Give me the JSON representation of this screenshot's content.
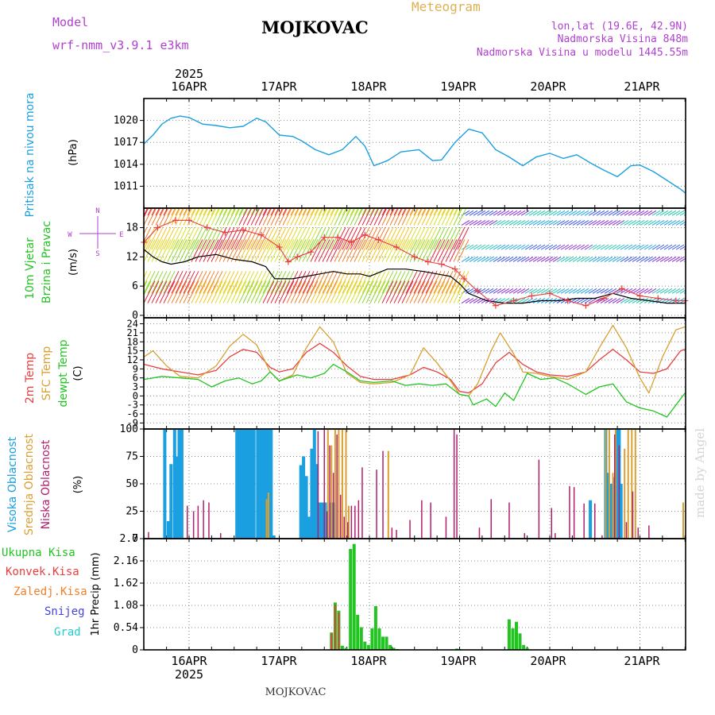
{
  "header": {
    "model_label": "Model",
    "model_name": "wrf-nmm_v3.9.1  e3km",
    "station": "MOJKOVAC",
    "meteogram": "Meteogram",
    "lonlat": "lon,lat (19.6E, 42.9N)",
    "elevation": "Nadmorska Visina 848m",
    "model_elevation": "Nadmorska Visina u modelu 1445.55m",
    "footer_station": "MOJKOVAC",
    "credit": "made by Angel",
    "year_top": "2025",
    "year_bottom": "2025"
  },
  "colors": {
    "pressure": "#1aa0e0",
    "wind": "#000000",
    "temp2m": "#e83e3e",
    "sfc": "#d9a030",
    "dew": "#22c422",
    "high": "#1aa0e0",
    "mid": "#d9a030",
    "low": "#b0206e",
    "total": "#22c422",
    "conv": "#e83e3e",
    "frozen": "#f07f28",
    "snow": "#4444dd",
    "hail": "#22cccc",
    "purple": "#b040d0",
    "orange_title": "#e0b050"
  },
  "chart_data": [
    {
      "type": "line",
      "id": "pressure",
      "title": "Pritisak na nivou mora",
      "ylabel": "(hPa)",
      "ylim": [
        1008,
        1023
      ],
      "yticks": [
        1011,
        1014,
        1017,
        1020
      ],
      "ytick_labels": [
        "1011",
        "1014",
        "1017",
        "1020"
      ],
      "xlim": [
        -0.5,
        5.5
      ],
      "x": [
        -0.5,
        -0.4,
        -0.3,
        -0.2,
        -0.1,
        0.0,
        0.15,
        0.3,
        0.45,
        0.6,
        0.75,
        0.85,
        1.0,
        1.15,
        1.25,
        1.4,
        1.55,
        1.7,
        1.85,
        1.95,
        2.05,
        2.2,
        2.35,
        2.55,
        2.7,
        2.8,
        2.95,
        3.1,
        3.25,
        3.4,
        3.55,
        3.7,
        3.85,
        4.0,
        4.15,
        4.3,
        4.45,
        4.6,
        4.75,
        4.9,
        5.0,
        5.15,
        5.3,
        5.45,
        5.5
      ],
      "y": [
        1016.8,
        1018.0,
        1019.5,
        1020.3,
        1020.6,
        1020.4,
        1019.5,
        1019.3,
        1019.0,
        1019.2,
        1020.3,
        1019.8,
        1018.0,
        1017.8,
        1017.2,
        1016.0,
        1015.3,
        1016.0,
        1017.8,
        1016.5,
        1013.8,
        1014.5,
        1015.7,
        1016.0,
        1014.5,
        1014.6,
        1017.0,
        1018.8,
        1018.3,
        1016.0,
        1015.0,
        1013.8,
        1015.0,
        1015.5,
        1014.8,
        1015.3,
        1014.2,
        1013.2,
        1012.3,
        1013.8,
        1013.9,
        1013.0,
        1011.8,
        1010.6,
        1010.1
      ],
      "color": "#1aa0e0"
    },
    {
      "type": "line",
      "id": "wind",
      "title": [
        "10m Vjetar",
        "Brzina i Pravac"
      ],
      "ylabel": "(m/s)",
      "ylim": [
        -0.5,
        22
      ],
      "yticks": [
        0,
        6,
        12,
        18
      ],
      "ytick_labels": [
        "0",
        "6",
        "12",
        "18"
      ],
      "compass": {
        "n": "N",
        "s": "S",
        "w": "W",
        "e": "E"
      },
      "xlim": [
        -0.5,
        5.5
      ],
      "series": [
        {
          "name": "wind speed",
          "color": "#000000",
          "x": [
            -0.5,
            -0.4,
            -0.3,
            -0.2,
            -0.05,
            0.1,
            0.3,
            0.5,
            0.7,
            0.85,
            0.95,
            1.05,
            1.15,
            1.3,
            1.45,
            1.6,
            1.75,
            1.9,
            2.0,
            2.2,
            2.4,
            2.6,
            2.75,
            2.9,
            3.0,
            3.1,
            3.3,
            3.5,
            3.7,
            3.9,
            4.1,
            4.3,
            4.5,
            4.7,
            4.9,
            5.1,
            5.3,
            5.5
          ],
          "y": [
            13.5,
            12.0,
            11.0,
            10.5,
            11.0,
            12.0,
            12.5,
            11.5,
            11.0,
            10.0,
            7.5,
            7.5,
            7.5,
            8.0,
            8.5,
            9.0,
            8.5,
            8.5,
            8.0,
            9.5,
            9.5,
            9.0,
            8.5,
            8.0,
            6.5,
            4.5,
            3.0,
            2.5,
            2.5,
            3.0,
            3.0,
            3.5,
            3.5,
            4.5,
            3.5,
            3.0,
            2.5,
            2.5
          ]
        },
        {
          "name": "wind gust",
          "color": "#e83e3e",
          "x": [
            -0.5,
            -0.35,
            -0.15,
            0.0,
            0.2,
            0.4,
            0.6,
            0.8,
            1.0,
            1.1,
            1.2,
            1.35,
            1.5,
            1.65,
            1.8,
            1.95,
            2.1,
            2.3,
            2.5,
            2.65,
            2.8,
            2.95,
            3.05,
            3.2,
            3.4,
            3.6,
            3.8,
            4.0,
            4.2,
            4.4,
            4.6,
            4.8,
            5.0,
            5.2,
            5.4,
            5.5
          ],
          "y": [
            15.0,
            18.0,
            19.5,
            19.5,
            18.0,
            17.0,
            17.5,
            16.5,
            14.0,
            11.0,
            12.0,
            13.0,
            16.0,
            16.0,
            15.0,
            16.5,
            15.5,
            14.0,
            12.0,
            11.0,
            10.5,
            9.5,
            7.5,
            5.0,
            2.0,
            3.0,
            4.0,
            4.5,
            3.0,
            2.0,
            3.5,
            5.5,
            4.0,
            3.5,
            3.0,
            3.0
          ]
        }
      ]
    },
    {
      "type": "line",
      "id": "temperature",
      "title": [
        "2m Temp",
        "SFC Temp",
        "dewpt Temp"
      ],
      "ylabel": "(C)",
      "ylim": [
        -11,
        26
      ],
      "yticks": [
        -9,
        -6,
        -3,
        0,
        3,
        6,
        9,
        12,
        15,
        18,
        21,
        24
      ],
      "ytick_labels": [
        "-9",
        "-6",
        "-3",
        "0",
        "3",
        "6",
        "9",
        "12",
        "15",
        "18",
        "21",
        "24"
      ],
      "xlim": [
        -0.5,
        5.5
      ],
      "series": [
        {
          "name": "2m Temp",
          "color": "#e83e3e",
          "x": [
            -0.5,
            -0.3,
            -0.1,
            0.1,
            0.3,
            0.45,
            0.6,
            0.75,
            0.9,
            1.0,
            1.15,
            1.3,
            1.45,
            1.6,
            1.75,
            1.9,
            2.05,
            2.25,
            2.45,
            2.6,
            2.75,
            2.9,
            3.0,
            3.1,
            3.25,
            3.4,
            3.55,
            3.7,
            3.85,
            4.0,
            4.2,
            4.4,
            4.55,
            4.7,
            4.85,
            5.0,
            5.15,
            5.3,
            5.45,
            5.5
          ],
          "y": [
            10.5,
            9.0,
            8.0,
            7.0,
            8.5,
            13.0,
            15.5,
            14.5,
            9.5,
            8.0,
            9.0,
            14.5,
            17.5,
            14.5,
            10.0,
            6.5,
            5.5,
            5.5,
            7.0,
            9.5,
            8.0,
            5.5,
            1.5,
            1.0,
            4.0,
            11.0,
            14.5,
            10.5,
            8.0,
            7.0,
            6.5,
            8.0,
            12.0,
            15.5,
            12.0,
            8.0,
            7.5,
            9.0,
            15.0,
            15.5
          ]
        },
        {
          "name": "SFC Temp",
          "color": "#d9a030",
          "x": [
            -0.5,
            -0.4,
            -0.25,
            -0.1,
            0.1,
            0.3,
            0.45,
            0.6,
            0.75,
            0.9,
            1.0,
            1.15,
            1.3,
            1.45,
            1.6,
            1.75,
            1.9,
            2.05,
            2.25,
            2.45,
            2.6,
            2.75,
            2.9,
            3.0,
            3.1,
            3.2,
            3.35,
            3.45,
            3.6,
            3.7,
            3.85,
            4.0,
            4.2,
            4.4,
            4.55,
            4.7,
            4.85,
            5.0,
            5.1,
            5.25,
            5.4,
            5.5
          ],
          "y": [
            13.0,
            15.0,
            10.0,
            6.5,
            6.0,
            10.0,
            16.5,
            20.5,
            17.0,
            8.0,
            5.0,
            7.0,
            16.0,
            23.0,
            18.0,
            7.5,
            4.5,
            4.0,
            4.5,
            7.0,
            16.0,
            11.0,
            5.0,
            0.5,
            0.0,
            4.0,
            15.0,
            21.0,
            14.0,
            8.0,
            7.5,
            6.5,
            5.5,
            8.0,
            16.0,
            23.5,
            16.0,
            6.0,
            1.0,
            13.0,
            22.0,
            23.0
          ]
        },
        {
          "name": "dewpt Temp",
          "color": "#22c422",
          "x": [
            -0.5,
            -0.3,
            -0.1,
            0.1,
            0.25,
            0.4,
            0.55,
            0.7,
            0.8,
            0.9,
            1.0,
            1.2,
            1.35,
            1.5,
            1.6,
            1.75,
            1.9,
            2.05,
            2.25,
            2.4,
            2.55,
            2.7,
            2.85,
            3.0,
            3.1,
            3.15,
            3.3,
            3.4,
            3.5,
            3.6,
            3.75,
            3.9,
            4.05,
            4.2,
            4.4,
            4.55,
            4.7,
            4.85,
            5.0,
            5.15,
            5.3,
            5.45,
            5.5
          ],
          "y": [
            5.5,
            6.5,
            6.0,
            5.5,
            3.0,
            5.0,
            6.0,
            4.0,
            5.0,
            8.0,
            5.0,
            7.0,
            6.0,
            7.5,
            10.5,
            8.0,
            5.0,
            4.5,
            5.0,
            3.5,
            4.0,
            3.5,
            4.0,
            0.5,
            0.0,
            -3.0,
            -1.0,
            -3.5,
            1.0,
            -1.5,
            7.5,
            5.5,
            6.0,
            4.0,
            0.5,
            3.0,
            4.0,
            -2.0,
            -4.0,
            -5.0,
            -7.0,
            -1.0,
            1.0
          ]
        }
      ]
    },
    {
      "type": "bar",
      "id": "cloud",
      "title": [
        "Visoka Oblacnost",
        "Srednja Oblacnost",
        "Niska Oblacnost"
      ],
      "ylabel": "(%)",
      "ylim": [
        0,
        100
      ],
      "yticks": [
        0,
        25,
        50,
        75,
        100
      ],
      "ytick_labels": [
        "0",
        "25",
        "50",
        "75",
        "100"
      ],
      "xlim": [
        -0.5,
        5.5
      ],
      "series": [
        {
          "name": "Visoka Oblacnost",
          "color": "#1aa0e0",
          "x": [
            -0.27,
            -0.23,
            -0.2,
            -0.16,
            -0.14,
            -0.11,
            -0.08,
            0.53,
            0.56,
            0.58,
            0.61,
            0.64,
            0.67,
            0.7,
            0.72,
            0.76,
            0.79,
            0.82,
            0.85,
            0.88,
            0.91,
            0.94,
            1.24,
            1.27,
            1.3,
            1.33,
            1.36,
            1.39,
            1.42,
            1.45,
            1.48,
            1.51,
            1.58,
            1.61,
            4.45,
            4.62,
            4.65,
            4.68,
            4.71,
            4.74,
            4.77,
            4.79
          ],
          "values": [
            100,
            16,
            68,
            100,
            75,
            100,
            100,
            100,
            100,
            100,
            100,
            100,
            100,
            100,
            100,
            100,
            100,
            100,
            100,
            100,
            100,
            3,
            67,
            75,
            57,
            20,
            82,
            100,
            68,
            33,
            33,
            33,
            33,
            33,
            35,
            100,
            60,
            50,
            56,
            100,
            100,
            50
          ]
        },
        {
          "name": "Srednja Oblacnost",
          "color": "#d9a030",
          "x": [
            0.86,
            0.88,
            1.54,
            1.58,
            1.62,
            1.66,
            1.7,
            1.74,
            1.77,
            2.21,
            4.62,
            4.66,
            4.7,
            4.73,
            4.83,
            4.87,
            4.91,
            4.95,
            5.48
          ],
          "values": [
            36,
            42,
            100,
            85,
            100,
            100,
            100,
            100,
            30,
            80,
            100,
            100,
            60,
            100,
            82,
            100,
            100,
            100,
            33
          ]
        },
        {
          "name": "Niska Oblacnost",
          "color": "#b0206e",
          "x": [
            -0.45,
            -0.02,
            0.05,
            0.1,
            0.16,
            0.22,
            0.35,
            1.43,
            1.5,
            1.53,
            1.56,
            1.6,
            1.64,
            1.68,
            1.72,
            1.76,
            1.8,
            1.84,
            1.88,
            1.92,
            2.08,
            2.15,
            2.25,
            2.3,
            2.45,
            2.58,
            2.68,
            2.85,
            2.94,
            2.97,
            3.22,
            3.35,
            3.55,
            3.72,
            3.88,
            4.02,
            4.06,
            4.22,
            4.27,
            4.38,
            4.5,
            4.58,
            4.72,
            4.77,
            4.85,
            4.92,
            4.98,
            5.1
          ],
          "values": [
            6,
            30,
            25,
            30,
            35,
            33,
            5,
            98,
            100,
            25,
            85,
            60,
            95,
            40,
            20,
            15,
            30,
            30,
            35,
            65,
            63,
            80,
            10,
            8,
            17,
            35,
            33,
            20,
            100,
            95,
            10,
            36,
            33,
            5,
            72,
            28,
            5,
            48,
            47,
            32,
            32,
            3,
            95,
            85,
            15,
            43,
            10,
            12
          ]
        }
      ]
    },
    {
      "type": "bar",
      "id": "precip",
      "title": [
        "Ukupna Kisa",
        "Konvek.Kisa",
        "Zaledj.Kisa",
        "Snijeg",
        "Grad"
      ],
      "ylabel": "1hr Precip (mm)",
      "ylim": [
        0,
        2.7
      ],
      "yticks": [
        0,
        0.54,
        1.08,
        1.62,
        2.16,
        2.7
      ],
      "ytick_labels": [
        "0",
        "0.54",
        "1.08",
        "1.62",
        "2.16",
        "2.7"
      ],
      "xlim": [
        -0.5,
        5.5
      ],
      "series": [
        {
          "name": "Ukupna Kisa",
          "color": "#22c422",
          "x": [
            1.58,
            1.62,
            1.66,
            1.7,
            1.74,
            1.79,
            1.83,
            1.87,
            1.91,
            1.95,
            1.99,
            2.03,
            2.07,
            2.11,
            2.15,
            2.19,
            2.23,
            2.27,
            2.31,
            2.97,
            3.01,
            3.55,
            3.59,
            3.63,
            3.67,
            3.71,
            3.75
          ],
          "values": [
            0.42,
            1.15,
            0.95,
            0.1,
            0.05,
            2.45,
            2.57,
            0.85,
            0.55,
            0.2,
            0.12,
            0.52,
            1.06,
            0.52,
            0.32,
            0.32,
            0.12,
            0.05,
            0.02,
            0.03,
            0.02,
            0.74,
            0.52,
            0.68,
            0.4,
            0.12,
            0.05
          ]
        },
        {
          "name": "Konvek.Kisa",
          "color": "#e83e3e",
          "x": [
            1.58,
            1.62,
            1.66
          ],
          "values": [
            0.4,
            1.1,
            0.9
          ]
        }
      ]
    }
  ],
  "x_axis": {
    "top_labels": [
      "16APR",
      "17APR",
      "18APR",
      "19APR",
      "20APR",
      "21APR"
    ],
    "bottom_labels": [
      "16APR",
      "17APR",
      "18APR",
      "19APR",
      "20APR",
      "21APR"
    ],
    "days": [
      0,
      1,
      2,
      3,
      4,
      5
    ]
  }
}
